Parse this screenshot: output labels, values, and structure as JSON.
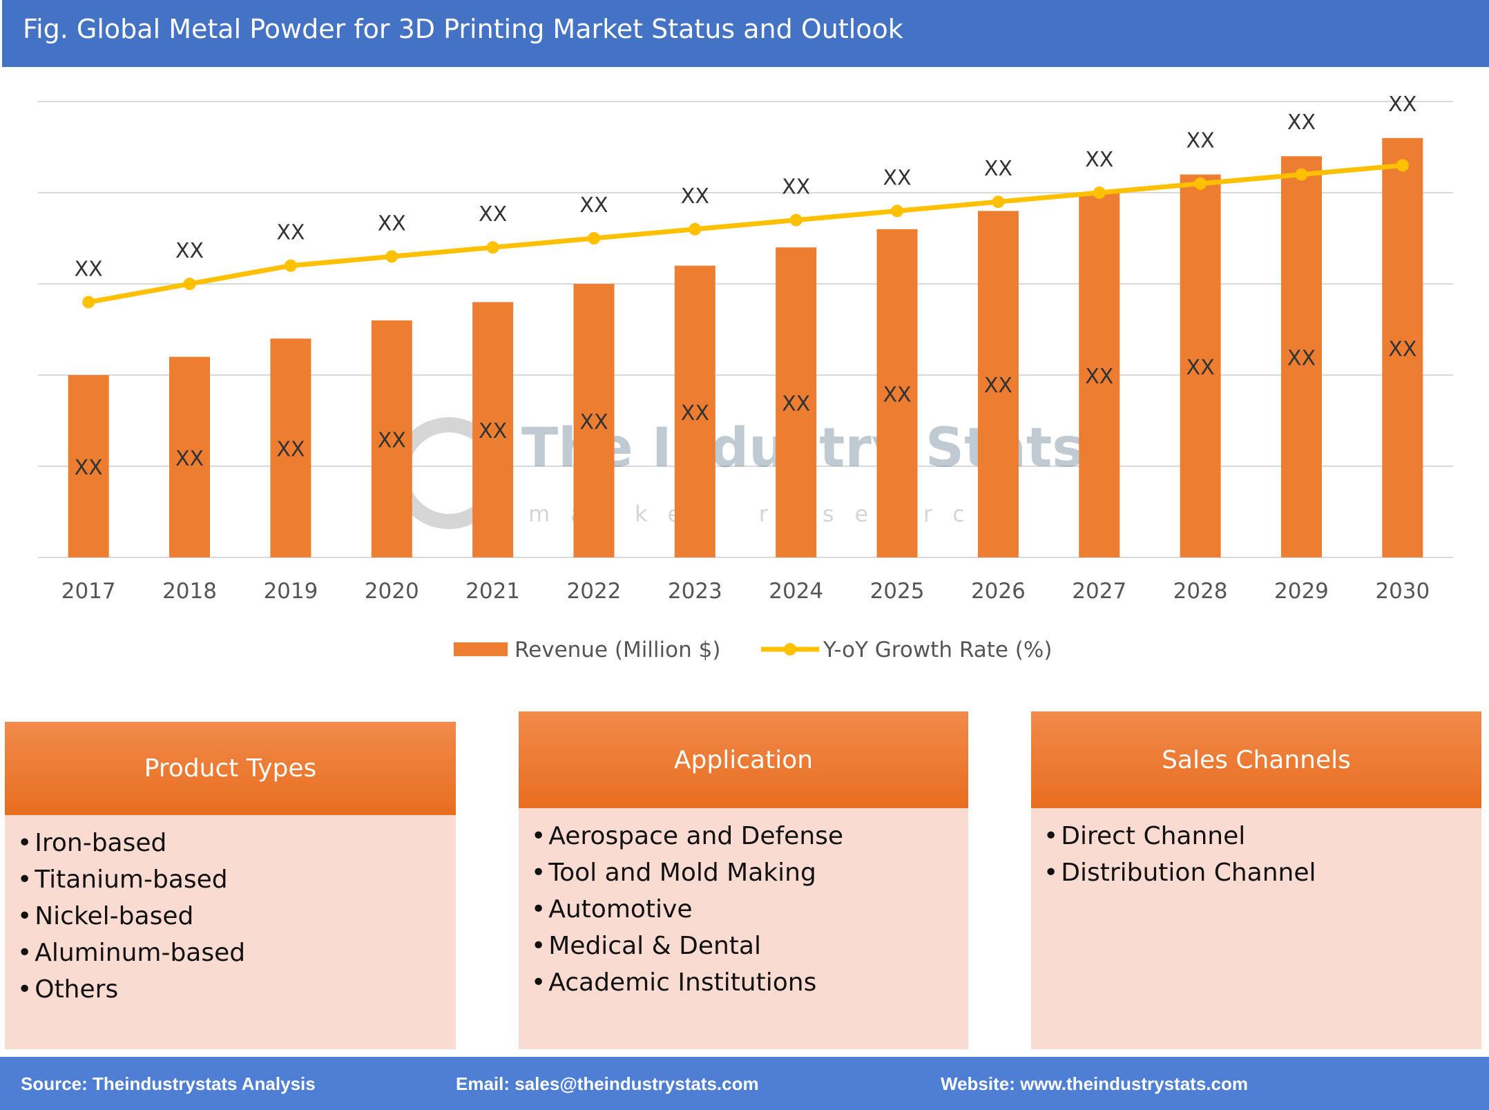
{
  "title": "Fig. Global Metal Powder for 3D Printing Market Status and Outlook",
  "chart_data": {
    "type": "bar",
    "categories": [
      "2017",
      "2018",
      "2019",
      "2020",
      "2021",
      "2022",
      "2023",
      "2024",
      "2025",
      "2026",
      "2027",
      "2028",
      "2029",
      "2030"
    ],
    "ylim": [
      0,
      5
    ],
    "grid": true,
    "legend_position": "bottom",
    "series": [
      {
        "name": "Revenue (Million $)",
        "type": "bar",
        "color": "#ed7d31",
        "values": [
          2.0,
          2.2,
          2.4,
          2.6,
          2.8,
          3.0,
          3.2,
          3.4,
          3.6,
          3.8,
          4.0,
          4.2,
          4.4,
          4.6
        ],
        "labels": [
          "XX",
          "XX",
          "XX",
          "XX",
          "XX",
          "XX",
          "XX",
          "XX",
          "XX",
          "XX",
          "XX",
          "XX",
          "XX",
          "XX"
        ]
      },
      {
        "name": "Y-oY Growth Rate (%)",
        "type": "line",
        "color": "#ffc000",
        "values": [
          2.8,
          3.0,
          3.2,
          3.3,
          3.4,
          3.5,
          3.6,
          3.7,
          3.8,
          3.9,
          4.0,
          4.1,
          4.2,
          4.3
        ],
        "labels": [
          "XX",
          "XX",
          "XX",
          "XX",
          "XX",
          "XX",
          "XX",
          "XX",
          "XX",
          "XX",
          "XX",
          "XX",
          "XX",
          "XX"
        ]
      }
    ]
  },
  "watermark": {
    "name": "The Industry Stats",
    "tagline": "market research"
  },
  "panels": [
    {
      "title": "Product Types",
      "items": [
        "Iron-based",
        "Titanium-based",
        "Nickel-based",
        "Aluminum-based",
        "Others"
      ]
    },
    {
      "title": "Application",
      "items": [
        "Aerospace and Defense",
        "Tool and Mold Making",
        "Automotive",
        "Medical & Dental",
        "Academic Institutions"
      ]
    },
    {
      "title": "Sales Channels",
      "items": [
        "Direct Channel",
        "Distribution Channel"
      ]
    }
  ],
  "footer": {
    "source": "Source: Theindustrystats Analysis",
    "email": "Email: sales@theindustrystats.com",
    "website": "Website: www.theindustrystats.com"
  }
}
